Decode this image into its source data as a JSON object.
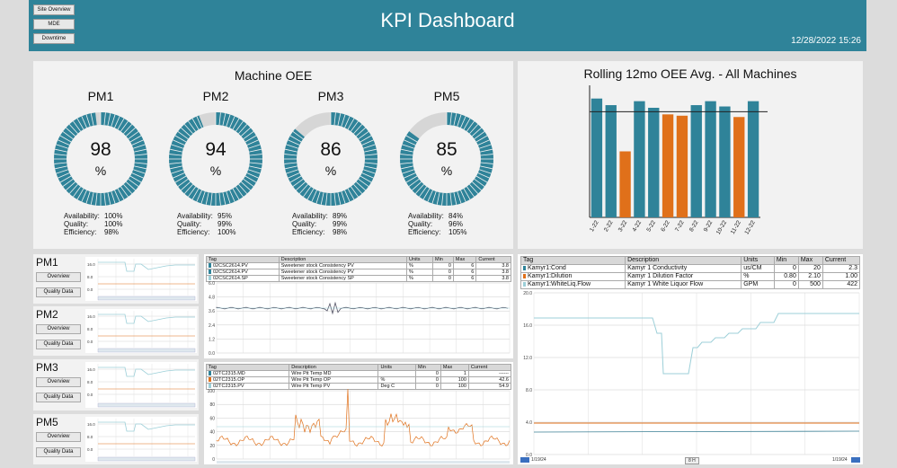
{
  "nav": {
    "site_overview": "Site Overview",
    "mde": "MDE",
    "downtime": "Downtime"
  },
  "header": {
    "title": "KPI Dashboard",
    "datetime": "12/28/2022 15:26"
  },
  "colors": {
    "teal": "#2f8399",
    "orange": "#e0701a",
    "light_blue": "#9ccfd8",
    "track": "#d6d6d6"
  },
  "oee": {
    "title": "Machine OEE",
    "availability_label": "Availability:",
    "quality_label": "Quality:",
    "efficiency_label": "Efficiency:",
    "machines": [
      {
        "name": "PM1",
        "oee": 98,
        "unit": "%",
        "availability": "100%",
        "quality": "100%",
        "efficiency": "98%"
      },
      {
        "name": "PM2",
        "oee": 94,
        "unit": "%",
        "availability": "95%",
        "quality": "99%",
        "efficiency": "100%"
      },
      {
        "name": "PM3",
        "oee": 86,
        "unit": "%",
        "availability": "89%",
        "quality": "99%",
        "efficiency": "98%"
      },
      {
        "name": "PM5",
        "oee": 85,
        "unit": "%",
        "availability": "84%",
        "quality": "96%",
        "efficiency": "105%"
      }
    ]
  },
  "chart_data": {
    "type": "bar",
    "title": "Rolling 12mo OEE Avg. - All Machines",
    "categories": [
      "1-22",
      "2-22",
      "3-22",
      "4-22",
      "5-22",
      "6-22",
      "7-22",
      "8-22",
      "9-22",
      "10-22",
      "11-22",
      "12-22"
    ],
    "values": [
      90,
      85,
      50,
      88,
      83,
      78,
      77,
      85,
      88,
      84,
      76,
      88
    ],
    "bar_colors": [
      "teal",
      "teal",
      "orange",
      "teal",
      "teal",
      "orange",
      "orange",
      "teal",
      "teal",
      "teal",
      "orange",
      "teal"
    ],
    "target": 80,
    "ylim": [
      0,
      100
    ],
    "grid": false,
    "xlabel": "",
    "ylabel": ""
  },
  "pm_panels": [
    {
      "name": "PM1",
      "overview": "Overview",
      "quality": "Quality Data",
      "ticks": [
        "16.0",
        "8.0",
        "0.0"
      ]
    },
    {
      "name": "PM2",
      "overview": "Overview",
      "quality": "Quality Data",
      "ticks": [
        "16.0",
        "8.0",
        "0.0"
      ]
    },
    {
      "name": "PM3",
      "overview": "Overview",
      "quality": "Quality Data",
      "ticks": [
        "16.0",
        "8.0",
        "0.0"
      ]
    },
    {
      "name": "PM5",
      "overview": "Overview",
      "quality": "Quality Data",
      "ticks": [
        "16.0",
        "8.0",
        "0.0"
      ]
    }
  ],
  "trend1": {
    "headers": [
      "Tag",
      "Description",
      "Units",
      "Min",
      "Max",
      "Current"
    ],
    "rows": [
      {
        "tag": "02CSC2614.PV",
        "desc": "Sweetener stock Consistency PV",
        "units": "%",
        "min": "0",
        "max": "6",
        "current": "3.8",
        "color": "teal"
      },
      {
        "tag": "02CSC2614.PV",
        "desc": "Sweetener stock Consistency PV",
        "units": "%",
        "min": "0",
        "max": "6",
        "current": "3.8",
        "color": "teal"
      },
      {
        "tag": "02CSC2614.SP",
        "desc": "Sweetener stock Consistency SP",
        "units": "%",
        "min": "0",
        "max": "6",
        "current": "3.8",
        "color": "light_blue"
      }
    ],
    "ticks": [
      "6.0",
      "4.8",
      "3.6",
      "2.4",
      "1.2",
      "0.0"
    ]
  },
  "trend2": {
    "headers": [
      "Tag",
      "Description",
      "Units",
      "Min",
      "Max",
      "Current"
    ],
    "rows": [
      {
        "tag": "02TC2315.MD",
        "desc": "Wire Pit Temp MD",
        "units": "",
        "min": "0",
        "max": "1",
        "current": "------",
        "color": "teal"
      },
      {
        "tag": "02TC2315.OP",
        "desc": "Wire Pit Temp OP",
        "units": "%",
        "min": "0",
        "max": "100",
        "current": "42.6",
        "color": "orange"
      },
      {
        "tag": "02TC2315.PV",
        "desc": "Wire Pit Temp PV",
        "units": "Deg C",
        "min": "0",
        "max": "100",
        "current": "54.9",
        "color": "light_blue"
      }
    ],
    "ticks": [
      "100",
      "80",
      "60",
      "40",
      "20",
      "0"
    ]
  },
  "trend3": {
    "headers": [
      "Tag",
      "Description",
      "Units",
      "Min",
      "Max",
      "Current"
    ],
    "rows": [
      {
        "tag": "Kamyr1:Cond",
        "desc": "Kamyr 1 Conductivity",
        "units": "us/CM",
        "min": "0",
        "max": "20",
        "current": "2.3",
        "color": "teal"
      },
      {
        "tag": "Kamyr1:Dilution",
        "desc": "Kamyr 1 Dilution Factor",
        "units": "%",
        "min": "0.80",
        "max": "2.10",
        "current": "1.00",
        "color": "orange"
      },
      {
        "tag": "Kamyr1:WhiteLiq.Flow",
        "desc": "Kamyr 1 White Liquor Flow",
        "units": "GPM",
        "min": "0",
        "max": "500",
        "current": "422",
        "color": "light_blue"
      }
    ],
    "ticks": [
      "20.0",
      "16.0",
      "12.0",
      "8.0",
      "4.0",
      "0.0"
    ],
    "date_start": "1/19/24",
    "date_end": "1/19/24",
    "span": "8 H"
  }
}
